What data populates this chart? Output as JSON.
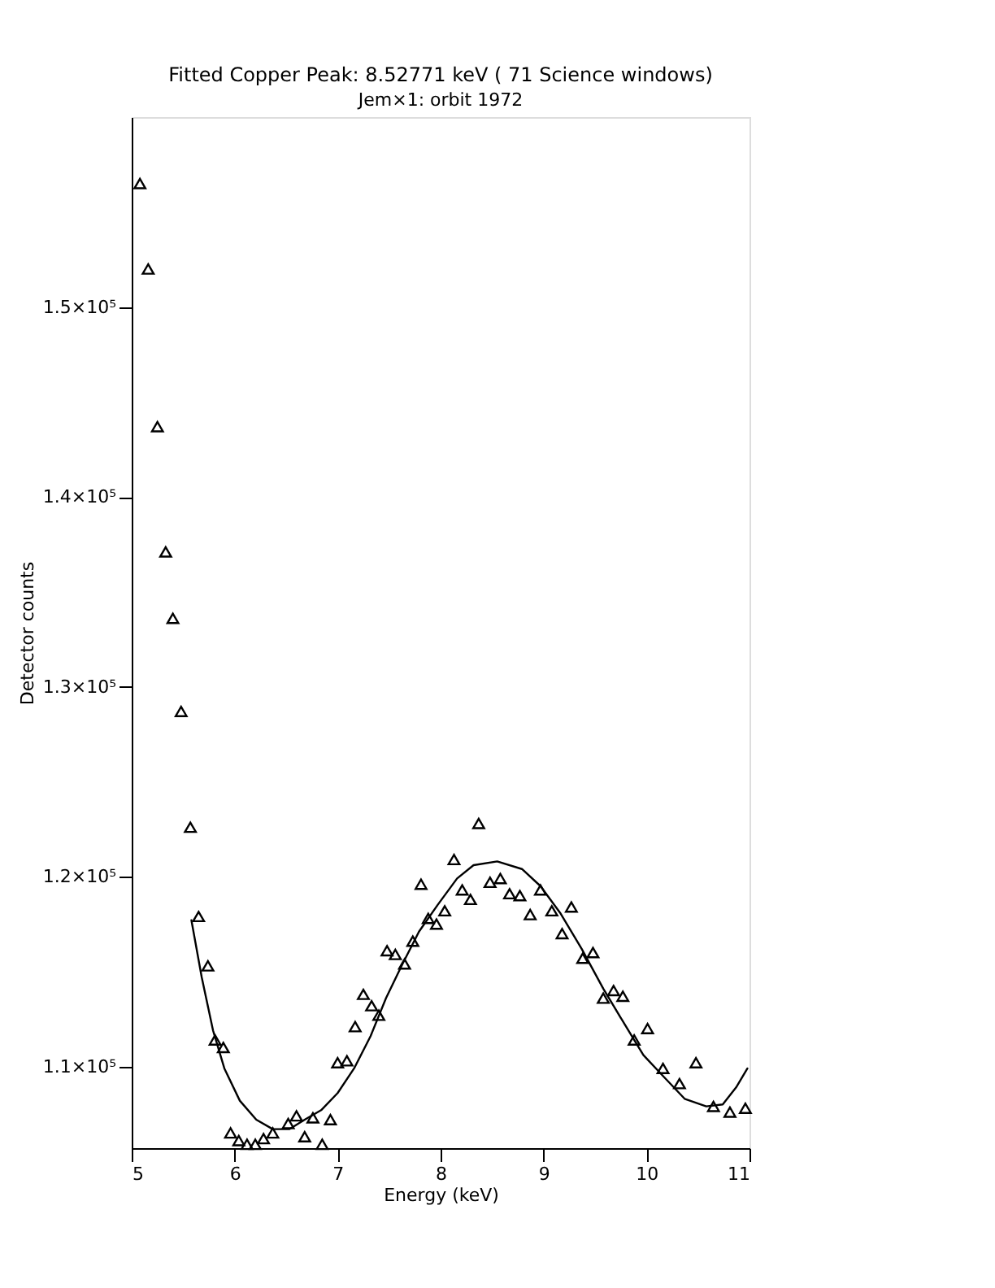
{
  "chart_data": {
    "type": "scatter",
    "title": "Fitted Copper Peak: 8.52771 keV ( 71 Science windows)",
    "xlabel": "Energy (keV)",
    "ylabel": "Detector counts",
    "annotations": [
      "Jem×1: orbit 1972"
    ],
    "xlim": [
      5,
      11
    ],
    "xticks": [
      5,
      6,
      7,
      8,
      9,
      10,
      11
    ],
    "ylim": [
      105700,
      160000
    ],
    "yticks": [
      {
        "value": 110000,
        "label": "1.1×10⁵"
      },
      {
        "value": 120000,
        "label": "1.2×10⁵"
      },
      {
        "value": 130000,
        "label": "1.3×10⁵"
      },
      {
        "value": 140000,
        "label": "1.4×10⁵"
      },
      {
        "value": 150000,
        "label": "1.5×10⁵"
      }
    ],
    "grid": false,
    "legend": false,
    "series": [
      {
        "marker": "triangle",
        "color": "#000000",
        "x": [
          5.08,
          5.16,
          5.25,
          5.33,
          5.4,
          5.48,
          5.57,
          5.65,
          5.74,
          5.81,
          5.89,
          5.96,
          6.04,
          6.12,
          6.2,
          6.28,
          6.37,
          6.52,
          6.6,
          6.68,
          6.76,
          6.85,
          6.93,
          7.0,
          7.09,
          7.17,
          7.25,
          7.33,
          7.4,
          7.48,
          7.56,
          7.65,
          7.73,
          7.81,
          7.88,
          7.96,
          8.04,
          8.13,
          8.21,
          8.29,
          8.37,
          8.48,
          8.58,
          8.67,
          8.77,
          8.87,
          8.97,
          9.08,
          9.18,
          9.27,
          9.38,
          9.48,
          9.58,
          9.68,
          9.77,
          9.88,
          10.01,
          10.16,
          10.32,
          10.48,
          10.65,
          10.81,
          10.96
        ],
        "values": [
          156500,
          152000,
          143700,
          137100,
          133600,
          128700,
          122600,
          117900,
          115300,
          111400,
          111000,
          106500,
          106100,
          105900,
          105900,
          106200,
          106500,
          107000,
          107400,
          106300,
          107300,
          105900,
          107200,
          110200,
          110300,
          112100,
          113800,
          113200,
          112700,
          116100,
          115900,
          115400,
          116600,
          119600,
          117800,
          117500,
          118200,
          120900,
          119300,
          118800,
          122800,
          119700,
          119900,
          119100,
          119000,
          118000,
          119300,
          118200,
          117000,
          118400,
          115700,
          116000,
          113600,
          114000,
          113700,
          111400,
          112000,
          109900,
          109100,
          110200,
          107900,
          107600,
          107800
        ]
      },
      {
        "type": "line",
        "line_style": "solid",
        "marker": "none",
        "color": "#000000",
        "x": [
          5.58,
          5.68,
          5.79,
          5.9,
          6.05,
          6.21,
          6.37,
          6.53,
          6.68,
          6.84,
          7.0,
          7.16,
          7.32,
          7.47,
          7.63,
          7.79,
          7.97,
          8.16,
          8.32,
          8.55,
          8.79,
          8.97,
          9.16,
          9.37,
          9.58,
          9.79,
          9.97,
          10.16,
          10.37,
          10.58,
          10.74,
          10.87,
          10.98
        ],
        "values": [
          117700,
          114700,
          111900,
          109900,
          108200,
          107200,
          106700,
          106700,
          107200,
          107700,
          108600,
          109900,
          111600,
          113600,
          115400,
          117100,
          118500,
          119900,
          120600,
          120800,
          120400,
          119500,
          118100,
          116200,
          114100,
          112200,
          110600,
          109500,
          108300,
          107900,
          108000,
          108900,
          109900
        ]
      }
    ]
  }
}
